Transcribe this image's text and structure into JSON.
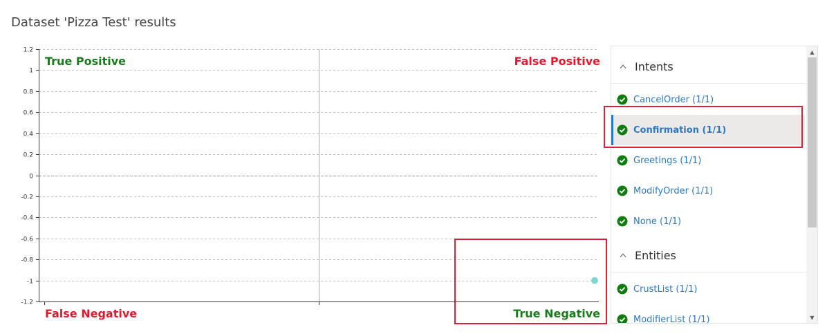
{
  "page": {
    "title": "Dataset 'Pizza Test' results"
  },
  "chart_data": {
    "type": "scatter",
    "ylim": [
      -1.2,
      1.2
    ],
    "yticks": [
      "1.2",
      "1",
      "0.8",
      "0.6",
      "0.4",
      "0.2",
      "0",
      "-0.2",
      "-0.4",
      "-0.6",
      "-0.8",
      "-1",
      "-1.2"
    ],
    "grid": true,
    "quadrants": {
      "top_left": "True Positive",
      "top_right": "False Positive",
      "bottom_left": "False Negative",
      "bottom_right": "True Negative"
    },
    "points": [
      {
        "y": -1.0,
        "quadrant": "bottom_right",
        "color": "#7fd6cf"
      }
    ]
  },
  "colors": {
    "positive_label": "#1b7a1b",
    "negative_label": "#e3182f",
    "highlight": "#d9203b",
    "link": "#2b78c2",
    "check": "#107c10"
  },
  "panel": {
    "intents": {
      "label": "Intents",
      "items": [
        {
          "label": "CancelOrder (1/1)",
          "status": "pass"
        },
        {
          "label": "Confirmation (1/1)",
          "status": "pass",
          "selected": true
        },
        {
          "label": "Greetings (1/1)",
          "status": "pass"
        },
        {
          "label": "ModifyOrder (1/1)",
          "status": "pass"
        },
        {
          "label": "None (1/1)",
          "status": "pass"
        }
      ]
    },
    "entities": {
      "label": "Entities",
      "items": [
        {
          "label": "CrustList (1/1)",
          "status": "pass"
        },
        {
          "label": "ModifierList (1/1)",
          "status": "pass"
        }
      ]
    }
  }
}
